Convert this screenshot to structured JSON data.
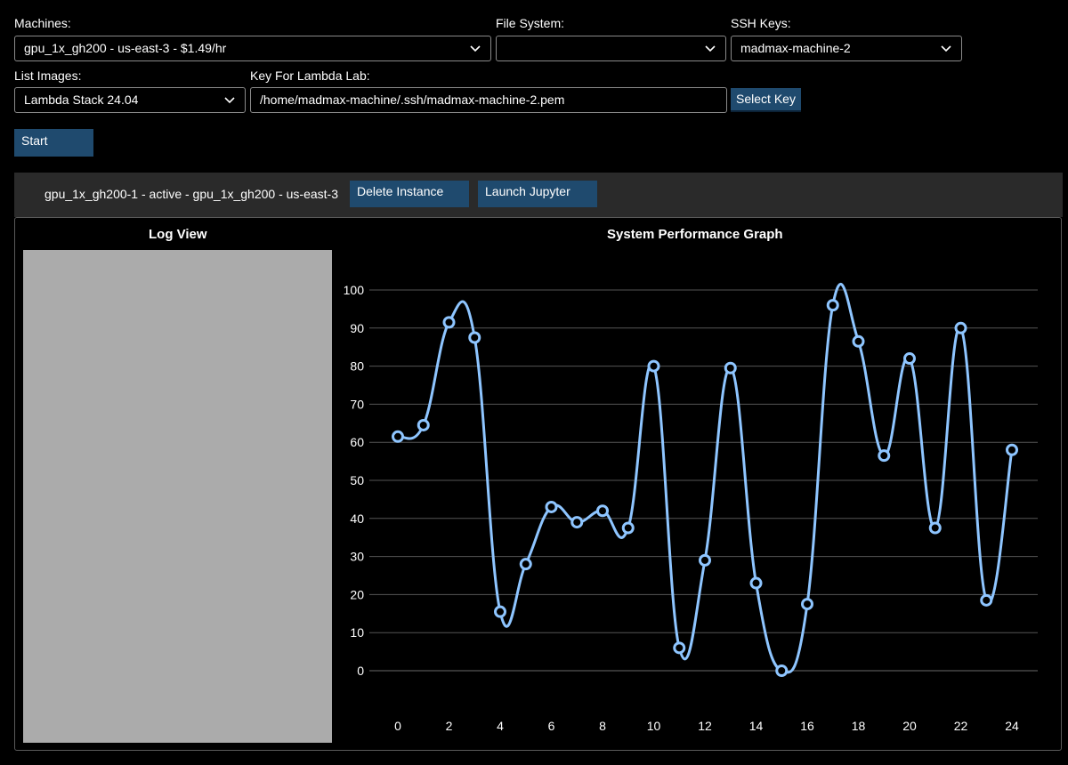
{
  "form": {
    "machines": {
      "label": "Machines:",
      "value": "gpu_1x_gh200 - us-east-3 -  $1.49/hr"
    },
    "file_system": {
      "label": "File System:",
      "value": ""
    },
    "ssh_keys": {
      "label": "SSH Keys:",
      "value": "madmax-machine-2"
    },
    "list_images": {
      "label": "List Images:",
      "value": "Lambda Stack 24.04"
    },
    "key_for_lambda_lab": {
      "label": "Key For Lambda Lab:",
      "value": "/home/madmax-machine/.ssh/madmax-machine-2.pem"
    },
    "select_key_label": "Select Key",
    "start_label": "Start"
  },
  "instance": {
    "text": "gpu_1x_gh200-1 - active - gpu_1x_gh200 - us-east-3",
    "delete_label": "Delete Instance",
    "launch_label": "Launch Jupyter"
  },
  "log_view": {
    "title": "Log View"
  },
  "chart_data": {
    "type": "line",
    "title": "System Performance Graph",
    "xlabel": "",
    "ylabel": "",
    "x": [
      0,
      1,
      2,
      3,
      4,
      5,
      6,
      7,
      8,
      9,
      10,
      11,
      12,
      13,
      14,
      15,
      16,
      17,
      18,
      19,
      20,
      21,
      22,
      23,
      24
    ],
    "values": [
      61.5,
      64.5,
      91.5,
      87.5,
      15.5,
      28,
      43,
      39,
      42,
      37.5,
      80,
      6,
      29,
      79.5,
      23,
      0,
      17.5,
      96,
      86.5,
      56.5,
      82,
      37.5,
      90,
      18.5,
      58
    ],
    "ylim": [
      0,
      100
    ],
    "yticks": [
      0,
      10,
      20,
      30,
      40,
      50,
      60,
      70,
      80,
      90,
      100
    ],
    "xticks": [
      0,
      2,
      4,
      6,
      8,
      10,
      12,
      14,
      16,
      18,
      20,
      22,
      24
    ],
    "grid": "horizontal",
    "line_color": "#8ec5ff"
  }
}
